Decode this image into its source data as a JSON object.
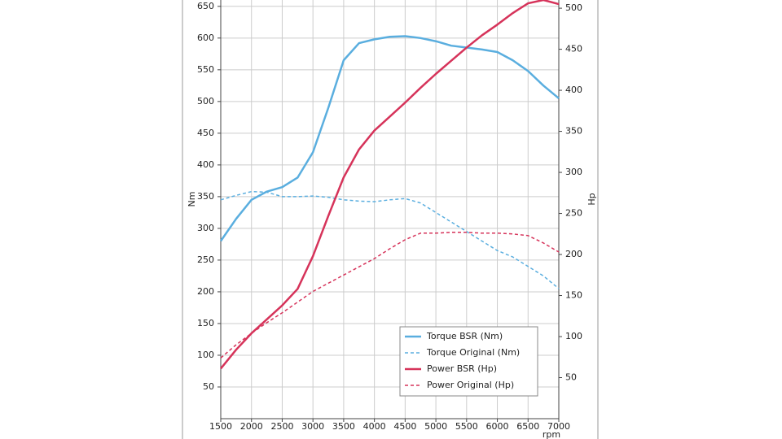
{
  "chart_data": {
    "type": "line",
    "xlabel": "rpm",
    "ylabel": "Nm",
    "y2label": "Hp",
    "xlim": [
      1500,
      7000
    ],
    "xticks": [
      1500,
      2000,
      2500,
      3000,
      3500,
      4000,
      4500,
      5000,
      5500,
      6000,
      6500,
      7000
    ],
    "ylim": [
      0,
      660
    ],
    "yticks": [
      50,
      100,
      150,
      200,
      250,
      300,
      350,
      400,
      450,
      500,
      550,
      600,
      650
    ],
    "y2lim": [
      0,
      510
    ],
    "y2ticks": [
      50,
      100,
      150,
      200,
      250,
      300,
      350,
      400,
      450,
      500
    ],
    "grid": true,
    "legend": "lower right",
    "x": [
      1500,
      1750,
      2000,
      2250,
      2500,
      2750,
      3000,
      3250,
      3500,
      3750,
      4000,
      4250,
      4500,
      4750,
      5000,
      5250,
      5500,
      5750,
      6000,
      6250,
      6500,
      6750,
      7000
    ],
    "series": [
      {
        "name": "Torque BSR (Nm)",
        "color": "#5aaedf",
        "dashed": false,
        "axis": "y",
        "values": [
          280,
          315,
          345,
          358,
          365,
          380,
          420,
          490,
          565,
          592,
          598,
          602,
          603,
          600,
          595,
          588,
          585,
          582,
          578,
          565,
          548,
          525,
          505
        ]
      },
      {
        "name": "Torque Original (Nm)",
        "color": "#5aaedf",
        "dashed": true,
        "axis": "y",
        "values": [
          345,
          352,
          358,
          357,
          350,
          350,
          351,
          349,
          345,
          343,
          342,
          345,
          347,
          340,
          325,
          310,
          295,
          280,
          265,
          255,
          240,
          225,
          205
        ]
      },
      {
        "name": "Power BSR (Hp)",
        "color": "#d6335a",
        "dashed": false,
        "axis": "y2",
        "values": [
          61,
          84,
          104,
          121,
          138,
          158,
          198,
          247,
          294,
          328,
          351,
          368,
          385,
          403,
          420,
          436,
          452,
          467,
          480,
          494,
          506,
          510,
          505
        ]
      },
      {
        "name": "Power Original (Hp)",
        "color": "#d6335a",
        "dashed": true,
        "axis": "y2",
        "values": [
          74,
          90,
          104,
          117,
          129,
          142,
          155,
          165,
          175,
          185,
          195,
          207,
          218,
          226,
          226,
          227,
          227,
          226,
          226,
          225,
          223,
          214,
          203
        ]
      }
    ]
  }
}
